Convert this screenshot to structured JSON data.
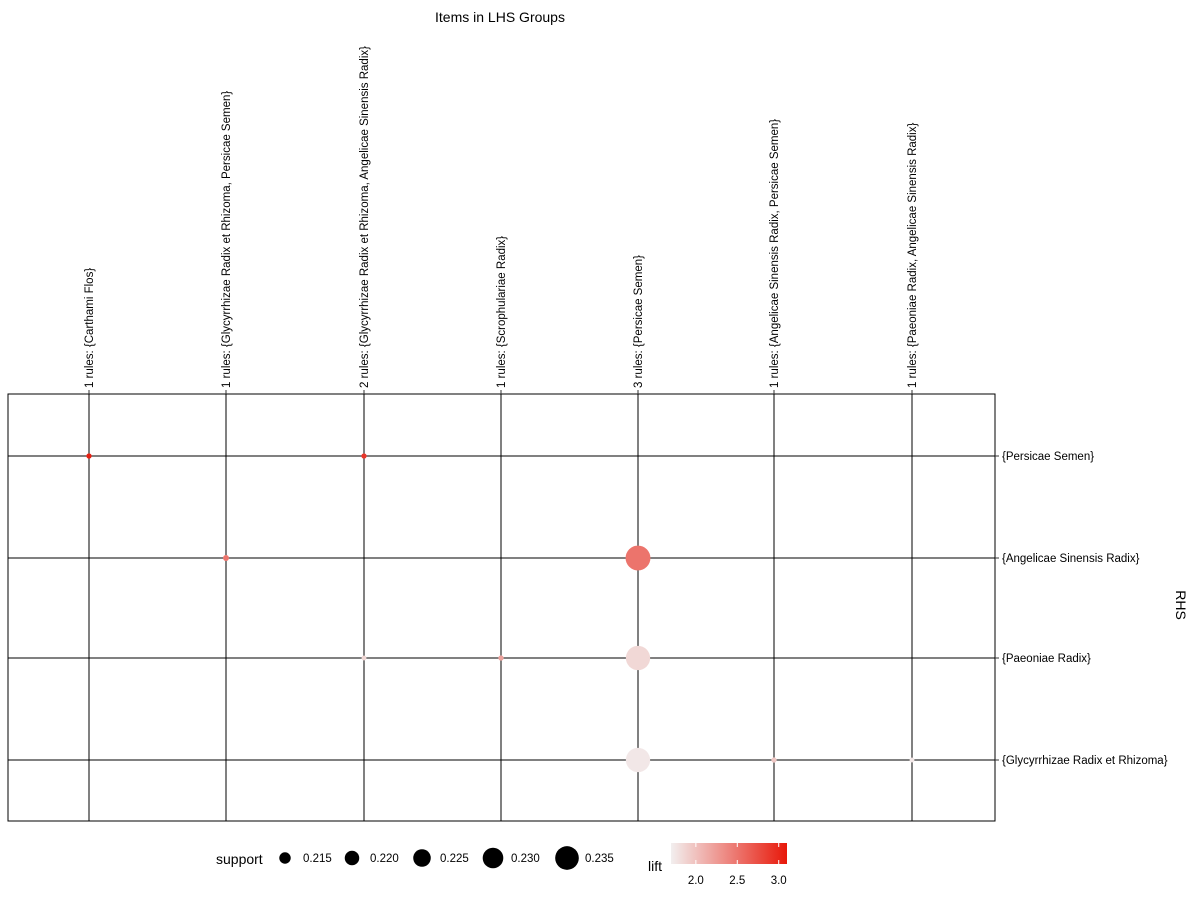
{
  "chart_data": {
    "type": "scatter",
    "title": "Items in LHS Groups",
    "ylabel": "RHS",
    "lhs_groups": [
      "1 rules: {Carthami Flos}",
      "1 rules: {Glycyrrhizae Radix et Rhizoma, Persicae Semen}",
      "2 rules: {Glycyrrhizae Radix et Rhizoma, Angelicae Sinensis Radix}",
      "1 rules: {Scrophulariae Radix}",
      "3 rules: {Persicae Semen}",
      "1 rules: {Angelicae Sinensis Radix, Persicae Semen}",
      "1 rules: {Paeoniae Radix, Angelicae Sinensis Radix}"
    ],
    "rhs_items": [
      "{Persicae Semen}",
      "{Angelicae Sinensis Radix}",
      "{Paeoniae Radix}",
      "{Glycyrrhizae Radix et Rhizoma}"
    ],
    "points": [
      {
        "lhs": 0,
        "rhs": 0,
        "support": 0.205,
        "lift": 3.05
      },
      {
        "lhs": 2,
        "rhs": 0,
        "support": 0.205,
        "lift": 2.9
      },
      {
        "lhs": 1,
        "rhs": 1,
        "support": 0.206,
        "lift": 2.5
      },
      {
        "lhs": 4,
        "rhs": 1,
        "support": 0.237,
        "lift": 2.5
      },
      {
        "lhs": 2,
        "rhs": 2,
        "support": 0.204,
        "lift": 1.85
      },
      {
        "lhs": 3,
        "rhs": 2,
        "support": 0.205,
        "lift": 2.2
      },
      {
        "lhs": 4,
        "rhs": 2,
        "support": 0.236,
        "lift": 1.85
      },
      {
        "lhs": 4,
        "rhs": 3,
        "support": 0.236,
        "lift": 1.75
      },
      {
        "lhs": 5,
        "rhs": 3,
        "support": 0.205,
        "lift": 1.95
      },
      {
        "lhs": 6,
        "rhs": 3,
        "support": 0.204,
        "lift": 1.75
      }
    ],
    "legend": {
      "support": {
        "title": "support",
        "breaks": [
          0.215,
          0.22,
          0.225,
          0.23,
          0.235
        ],
        "labels": [
          "0.215",
          "0.220",
          "0.225",
          "0.230",
          "0.235"
        ]
      },
      "lift": {
        "title": "lift",
        "range": [
          1.7,
          3.1
        ],
        "ticks": [
          2.0,
          2.5,
          3.0
        ],
        "labels": [
          "2.0",
          "2.5",
          "3.0"
        ],
        "color_low": "#f2efef",
        "color_high": "#e8180a"
      },
      "placement": "bottom"
    },
    "grid": true
  }
}
